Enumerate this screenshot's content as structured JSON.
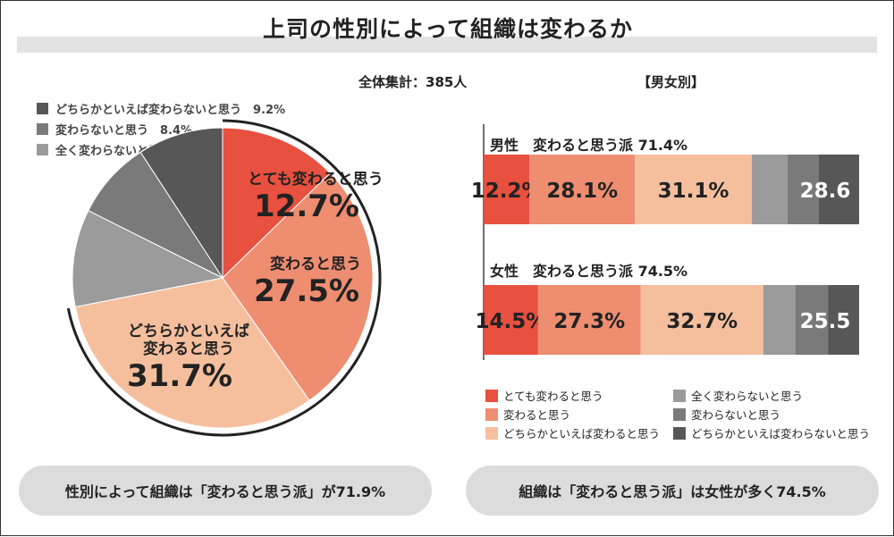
{
  "title": "上司の性別によって組織は変わるか",
  "total_label": "全体集計：385人",
  "gender_label": "【男女別】",
  "colors": {
    "very": "#e8503f",
    "change": "#ee8d70",
    "rather": "#f5bf9e",
    "not_at_all": "#9b9b9b",
    "not": "#7a7a7a",
    "rather_not": "#575757"
  },
  "chart_data": [
    {
      "type": "pie",
      "slices": [
        {
          "label": "とても変わると思う",
          "value": 12.7,
          "display": "12.7%",
          "color": "#e8503f"
        },
        {
          "label": "変わると思う",
          "value": 27.5,
          "display": "27.5%",
          "color": "#ee8d70"
        },
        {
          "label": "どちらかといえば\n変わると思う",
          "value": 31.7,
          "display": "31.7%",
          "color": "#f5bf9e"
        },
        {
          "label": "全く変わらないと思う",
          "value": 10.5,
          "display": "10.5%",
          "color": "#9b9b9b"
        },
        {
          "label": "変わらないと思う",
          "value": 8.4,
          "display": "8.4%",
          "color": "#7a7a7a"
        },
        {
          "label": "どちらかといえば変わらないと思う",
          "value": 9.2,
          "display": "9.2%",
          "color": "#575757"
        }
      ]
    },
    {
      "type": "bar",
      "orientation": "horizontal-stacked",
      "categories": [
        "男性",
        "女性"
      ],
      "headers": [
        "男性　変わると思う派 71.4%",
        "女性　変わると思う派 74.5%"
      ],
      "series": [
        {
          "name": "とても変わると思う",
          "values": [
            12.2,
            14.5
          ],
          "labels": [
            "12.2%",
            "14.5%"
          ],
          "color": "#e8503f"
        },
        {
          "name": "変わると思う",
          "values": [
            28.1,
            27.3
          ],
          "labels": [
            "28.1%",
            "27.3%"
          ],
          "color": "#ee8d70"
        },
        {
          "name": "どちらかといえば変わると思う",
          "values": [
            31.1,
            32.7
          ],
          "labels": [
            "31.1%",
            "32.7%"
          ],
          "color": "#f5bf9e"
        },
        {
          "name": "全く変わらないと思う",
          "values": [
            9.5,
            8.5
          ],
          "labels": [
            "",
            ""
          ],
          "color": "#9b9b9b"
        },
        {
          "name": "変わらないと思う",
          "values": [
            8.3,
            8.7
          ],
          "labels": [
            "",
            ""
          ],
          "color": "#7a7a7a"
        },
        {
          "name": "どちらかといえば変わらないと思う",
          "values": [
            10.8,
            8.3
          ],
          "labels": [
            "",
            ""
          ],
          "color": "#575757"
        }
      ],
      "group_labels": [
        "28.6",
        "25.5"
      ]
    }
  ],
  "top_legend": [
    {
      "text": "どちらかといえば変わらないと思う　9.2%",
      "color": "#575757"
    },
    {
      "text": "変わらないと思う　8.4%",
      "color": "#7a7a7a"
    },
    {
      "text": "全く変わらないと思う　10.5%",
      "color": "#9b9b9b"
    }
  ],
  "bar_legend": [
    {
      "text": "とても変わると思う",
      "color": "#e8503f"
    },
    {
      "text": "変わると思う",
      "color": "#ee8d70"
    },
    {
      "text": "どちらかといえば変わると思う",
      "color": "#f5bf9e"
    },
    {
      "text": "全く変わらないと思う",
      "color": "#9b9b9b"
    },
    {
      "text": "変わらないと思う",
      "color": "#7a7a7a"
    },
    {
      "text": "どちらかといえば変わらないと思う",
      "color": "#575757"
    }
  ],
  "summary_left": "性別によって組織は「変わると思う派」が71.9%",
  "summary_right": "組織は「変わると思う派」は女性が多く74.5%"
}
